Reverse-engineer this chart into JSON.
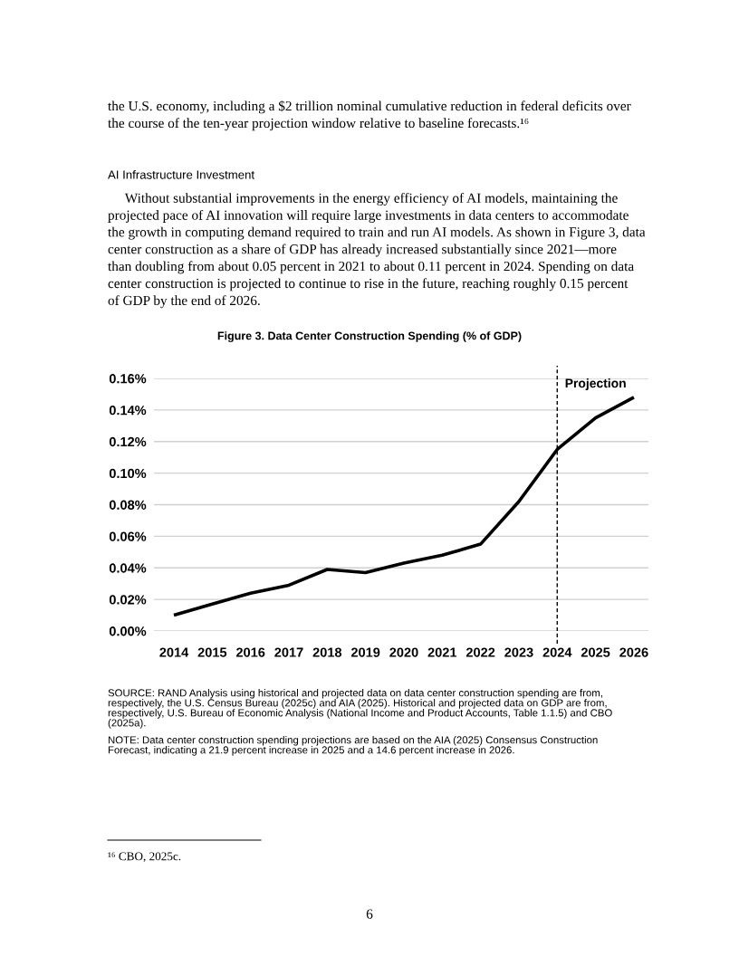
{
  "chart_data": {
    "type": "line",
    "title": "Figure 3. Data Center Construction Spending (% of GDP)",
    "x": [
      2014,
      2015,
      2016,
      2017,
      2018,
      2019,
      2020,
      2021,
      2022,
      2023,
      2024,
      2025,
      2026
    ],
    "series": [
      {
        "color": "#000000",
        "values": [
          0.01,
          0.017,
          0.024,
          0.029,
          0.039,
          0.037,
          0.043,
          0.048,
          0.055,
          0.082,
          0.115,
          0.135,
          0.148
        ]
      }
    ],
    "xlim": [
      2013.48,
      2026.38
    ],
    "xticks": [
      2014,
      2015,
      2016,
      2017,
      2018,
      2019,
      2020,
      2021,
      2022,
      2023,
      2024,
      2025,
      2026
    ],
    "ylim": [
      0,
      0.16
    ],
    "yticks": [
      {
        "value": 0,
        "label": "0.00%"
      },
      {
        "value": 0.02,
        "label": "0.02%"
      },
      {
        "value": 0.04,
        "label": "0.04%"
      },
      {
        "value": 0.06,
        "label": "0.06%"
      },
      {
        "value": 0.08,
        "label": "0.08%"
      },
      {
        "value": 0.1,
        "label": "0.10%"
      },
      {
        "value": 0.12,
        "label": "0.12%"
      },
      {
        "value": 0.14,
        "label": "0.14%"
      },
      {
        "value": 0.16,
        "label": "0.16%"
      }
    ],
    "grid": "y",
    "marker": "none",
    "line_style": "solid",
    "ref_lines": [
      {
        "axis": "x",
        "value": 2024,
        "label": "Projection",
        "color": "#000000",
        "line_style": "dashed"
      }
    ],
    "annotations": [
      "the U.S. economy, including a $2 trillion nominal cumulative reduction in federal deficits over\nthe course of the ten-year projection window relative to baseline forecasts.¹⁶",
      "AI Infrastructure Investment",
      "     Without substantial improvements in the energy efficiency of AI models, maintaining the\nprojected pace of AI innovation will require large investments in data centers to accommodate\nthe growth in computing demand required to train and run AI models. As shown in Figure 3, data\ncenter construction as a share of GDP has already increased substantially since 2021—more\nthan doubling from about 0.05 percent in 2021 to about 0.11 percent in 2024. Spending on data\ncenter construction is projected to continue to rise in the future, reaching roughly 0.15 percent\nof GDP by the end of 2026.",
      "SOURCE: RAND Analysis using historical and projected data on data center construction spending are from,\nrespectively, the U.S. Census Bureau (2025c) and AIA (2025). Historical and projected data on GDP are from,\nrespectively, U.S. Bureau of Economic Analysis (National Income and Product Accounts, Table 1.1.5) and CBO\n(2025a).",
      "NOTE: Data center construction spending projections are based on the AIA (2025) Consensus Construction\nForecast, indicating a 21.9 percent increase in 2025 and a 14.6 percent increase in 2026.",
      "¹⁶ CBO, 2025c.",
      "6"
    ]
  }
}
